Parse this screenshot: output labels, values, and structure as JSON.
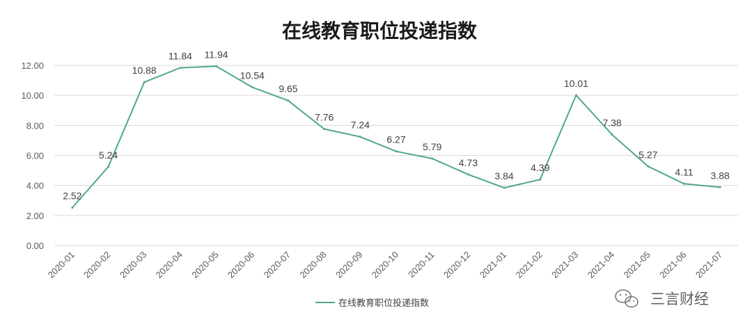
{
  "chart_data": {
    "type": "line",
    "title": "在线教育职位投递指数",
    "xlabel": "",
    "ylabel": "",
    "categories": [
      "2020-01",
      "2020-02",
      "2020-03",
      "2020-04",
      "2020-05",
      "2020-06",
      "2020-07",
      "2020-08",
      "2020-09",
      "2020-10",
      "2020-11",
      "2020-12",
      "2021-01",
      "2021-02",
      "2021-03",
      "2021-04",
      "2021-05",
      "2021-06",
      "2021-07"
    ],
    "series": [
      {
        "name": "在线教育职位投递指数",
        "values": [
          2.52,
          5.24,
          10.88,
          11.84,
          11.94,
          10.54,
          9.65,
          7.76,
          7.24,
          6.27,
          5.79,
          4.73,
          3.84,
          4.39,
          10.01,
          7.38,
          5.27,
          4.11,
          3.88
        ],
        "labels": [
          "2.52",
          "5.24",
          "10.88",
          "11.84",
          "11.94",
          "10.54",
          "9.65",
          "7.76",
          "7.24",
          "6.27",
          "5.79",
          "4.73",
          "3.84",
          "4.39",
          "10.01",
          "7.38",
          "5.27",
          "4.11",
          "3.88"
        ],
        "color": "#4ea883"
      }
    ],
    "ylim": [
      0,
      12
    ],
    "yticks": [
      "0.00",
      "2.00",
      "4.00",
      "6.00",
      "8.00",
      "10.00",
      "12.00"
    ],
    "grid": true,
    "legend_position": "bottom",
    "colors": {
      "grid": "#d9d9d9",
      "tick_text": "#595959",
      "label_text": "#404040",
      "title": "#1a1a1a"
    }
  },
  "watermark": {
    "text": "三言财经",
    "icon": "wechat-icon"
  }
}
